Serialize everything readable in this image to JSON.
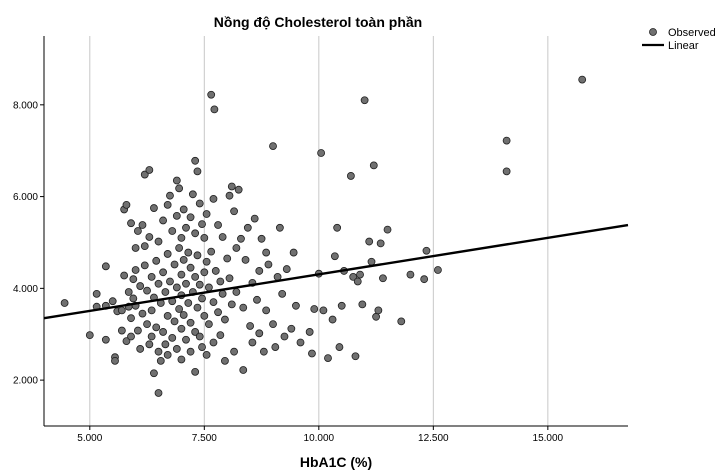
{
  "chart_data": {
    "type": "scatter",
    "title": "Nồng độ Cholesterol toàn phần",
    "xlabel": "HbA1C (%)",
    "ylabel": "",
    "xlim": [
      4.0,
      16.75
    ],
    "ylim": [
      1.0,
      9.5
    ],
    "x_ticks": [
      5.0,
      7.5,
      10.0,
      12.5,
      15.0
    ],
    "x_tick_labels": [
      "5.000",
      "7.500",
      "10.000",
      "12.500",
      "15.000"
    ],
    "y_ticks": [
      2.0,
      4.0,
      6.0,
      8.0
    ],
    "y_tick_labels": [
      "2.000",
      "4.000",
      "6.000",
      "8.000"
    ],
    "grid": "vertical",
    "legend_position": "top-right",
    "series": [
      {
        "name": "Observed",
        "kind": "scatter",
        "points": [
          [
            4.45,
            3.68
          ],
          [
            5.0,
            2.98
          ],
          [
            5.15,
            3.6
          ],
          [
            5.15,
            3.88
          ],
          [
            5.35,
            4.48
          ],
          [
            5.35,
            3.62
          ],
          [
            5.35,
            2.88
          ],
          [
            5.5,
            3.72
          ],
          [
            5.55,
            2.5
          ],
          [
            5.55,
            2.42
          ],
          [
            5.6,
            3.5
          ],
          [
            5.7,
            3.52
          ],
          [
            5.7,
            3.08
          ],
          [
            5.75,
            4.28
          ],
          [
            5.75,
            5.72
          ],
          [
            5.8,
            5.82
          ],
          [
            5.8,
            2.85
          ],
          [
            5.85,
            3.92
          ],
          [
            5.85,
            3.6
          ],
          [
            5.9,
            5.42
          ],
          [
            5.9,
            3.35
          ],
          [
            5.9,
            2.95
          ],
          [
            5.95,
            4.2
          ],
          [
            5.95,
            3.78
          ],
          [
            6.0,
            4.88
          ],
          [
            6.0,
            4.4
          ],
          [
            6.0,
            3.62
          ],
          [
            6.05,
            5.25
          ],
          [
            6.05,
            3.08
          ],
          [
            6.1,
            4.05
          ],
          [
            6.1,
            2.68
          ],
          [
            6.15,
            5.38
          ],
          [
            6.15,
            3.45
          ],
          [
            6.2,
            6.48
          ],
          [
            6.2,
            4.92
          ],
          [
            6.2,
            4.5
          ],
          [
            6.25,
            3.95
          ],
          [
            6.25,
            3.22
          ],
          [
            6.3,
            6.58
          ],
          [
            6.3,
            5.12
          ],
          [
            6.3,
            2.78
          ],
          [
            6.35,
            4.25
          ],
          [
            6.35,
            3.52
          ],
          [
            6.35,
            2.95
          ],
          [
            6.4,
            5.75
          ],
          [
            6.4,
            3.8
          ],
          [
            6.4,
            2.15
          ],
          [
            6.45,
            4.6
          ],
          [
            6.45,
            3.15
          ],
          [
            6.5,
            1.72
          ],
          [
            6.5,
            5.02
          ],
          [
            6.5,
            4.1
          ],
          [
            6.5,
            2.62
          ],
          [
            6.55,
            3.68
          ],
          [
            6.55,
            2.42
          ],
          [
            6.6,
            5.48
          ],
          [
            6.6,
            4.35
          ],
          [
            6.6,
            3.05
          ],
          [
            6.65,
            3.92
          ],
          [
            6.65,
            2.78
          ],
          [
            6.7,
            5.82
          ],
          [
            6.7,
            4.75
          ],
          [
            6.7,
            3.4
          ],
          [
            6.7,
            2.55
          ],
          [
            6.75,
            6.02
          ],
          [
            6.75,
            4.15
          ],
          [
            6.8,
            5.25
          ],
          [
            6.8,
            3.72
          ],
          [
            6.8,
            2.92
          ],
          [
            6.85,
            4.52
          ],
          [
            6.85,
            3.28
          ],
          [
            6.9,
            6.35
          ],
          [
            6.9,
            5.58
          ],
          [
            6.9,
            4.02
          ],
          [
            6.9,
            2.68
          ],
          [
            6.95,
            6.18
          ],
          [
            6.95,
            4.88
          ],
          [
            6.95,
            3.55
          ],
          [
            7.0,
            5.1
          ],
          [
            7.0,
            4.3
          ],
          [
            7.0,
            3.85
          ],
          [
            7.0,
            3.12
          ],
          [
            7.0,
            2.45
          ],
          [
            7.05,
            5.72
          ],
          [
            7.05,
            4.62
          ],
          [
            7.05,
            3.42
          ],
          [
            7.1,
            5.32
          ],
          [
            7.1,
            4.1
          ],
          [
            7.1,
            2.88
          ],
          [
            7.15,
            4.78
          ],
          [
            7.15,
            3.68
          ],
          [
            7.2,
            5.55
          ],
          [
            7.2,
            4.45
          ],
          [
            7.2,
            3.25
          ],
          [
            7.2,
            2.62
          ],
          [
            7.25,
            6.05
          ],
          [
            7.25,
            3.92
          ],
          [
            7.3,
            6.78
          ],
          [
            7.3,
            5.2
          ],
          [
            7.3,
            4.25
          ],
          [
            7.3,
            3.05
          ],
          [
            7.3,
            2.18
          ],
          [
            7.35,
            6.55
          ],
          [
            7.35,
            4.72
          ],
          [
            7.35,
            3.58
          ],
          [
            7.4,
            5.85
          ],
          [
            7.4,
            4.08
          ],
          [
            7.4,
            2.95
          ],
          [
            7.45,
            5.4
          ],
          [
            7.45,
            3.78
          ],
          [
            7.45,
            2.72
          ],
          [
            7.5,
            5.1
          ],
          [
            7.5,
            4.35
          ],
          [
            7.5,
            3.4
          ],
          [
            7.55,
            5.62
          ],
          [
            7.55,
            4.58
          ],
          [
            7.55,
            2.55
          ],
          [
            7.6,
            4.02
          ],
          [
            7.6,
            3.22
          ],
          [
            7.65,
            8.22
          ],
          [
            7.65,
            4.8
          ],
          [
            7.7,
            5.95
          ],
          [
            7.7,
            3.7
          ],
          [
            7.7,
            2.82
          ],
          [
            7.72,
            7.9
          ],
          [
            7.75,
            4.38
          ],
          [
            7.8,
            5.38
          ],
          [
            7.8,
            3.48
          ],
          [
            7.85,
            4.15
          ],
          [
            7.85,
            2.98
          ],
          [
            7.9,
            5.12
          ],
          [
            7.9,
            3.88
          ],
          [
            7.95,
            3.32
          ],
          [
            7.95,
            2.42
          ],
          [
            8.0,
            4.65
          ],
          [
            8.05,
            6.02
          ],
          [
            8.05,
            4.22
          ],
          [
            8.1,
            6.22
          ],
          [
            8.1,
            3.65
          ],
          [
            8.15,
            5.68
          ],
          [
            8.15,
            2.62
          ],
          [
            8.2,
            4.88
          ],
          [
            8.2,
            3.92
          ],
          [
            8.25,
            6.15
          ],
          [
            8.3,
            5.08
          ],
          [
            8.35,
            3.58
          ],
          [
            8.35,
            2.22
          ],
          [
            8.4,
            4.62
          ],
          [
            8.45,
            5.32
          ],
          [
            8.5,
            3.18
          ],
          [
            8.55,
            4.12
          ],
          [
            8.55,
            2.82
          ],
          [
            8.6,
            5.52
          ],
          [
            8.65,
            3.75
          ],
          [
            8.7,
            4.38
          ],
          [
            8.7,
            3.02
          ],
          [
            8.75,
            5.08
          ],
          [
            8.8,
            2.62
          ],
          [
            8.85,
            4.78
          ],
          [
            8.85,
            3.52
          ],
          [
            8.9,
            4.52
          ],
          [
            9.0,
            7.1
          ],
          [
            9.0,
            3.22
          ],
          [
            9.05,
            2.72
          ],
          [
            9.1,
            4.25
          ],
          [
            9.15,
            5.32
          ],
          [
            9.2,
            3.88
          ],
          [
            9.25,
            2.95
          ],
          [
            9.3,
            4.42
          ],
          [
            9.4,
            3.12
          ],
          [
            9.45,
            4.78
          ],
          [
            9.5,
            3.62
          ],
          [
            9.6,
            2.82
          ],
          [
            9.8,
            3.05
          ],
          [
            9.85,
            2.58
          ],
          [
            9.9,
            3.55
          ],
          [
            10.0,
            4.32
          ],
          [
            10.05,
            6.95
          ],
          [
            10.1,
            3.52
          ],
          [
            10.2,
            2.48
          ],
          [
            10.3,
            3.32
          ],
          [
            10.35,
            4.7
          ],
          [
            10.4,
            5.32
          ],
          [
            10.45,
            2.72
          ],
          [
            10.5,
            3.62
          ],
          [
            10.55,
            4.38
          ],
          [
            10.7,
            6.45
          ],
          [
            10.75,
            4.25
          ],
          [
            10.8,
            2.52
          ],
          [
            10.85,
            4.15
          ],
          [
            10.9,
            4.3
          ],
          [
            10.95,
            3.65
          ],
          [
            11.0,
            8.1
          ],
          [
            11.1,
            5.02
          ],
          [
            11.15,
            4.58
          ],
          [
            11.2,
            6.68
          ],
          [
            11.25,
            3.38
          ],
          [
            11.3,
            3.52
          ],
          [
            11.35,
            4.98
          ],
          [
            11.4,
            4.22
          ],
          [
            11.5,
            5.28
          ],
          [
            11.8,
            3.28
          ],
          [
            12.0,
            4.3
          ],
          [
            12.3,
            4.2
          ],
          [
            12.35,
            4.82
          ],
          [
            12.6,
            4.4
          ],
          [
            14.1,
            7.22
          ],
          [
            14.1,
            6.55
          ],
          [
            15.75,
            8.55
          ]
        ]
      },
      {
        "name": "Linear",
        "kind": "line",
        "points": [
          [
            4.0,
            3.35
          ],
          [
            16.75,
            5.38
          ]
        ]
      }
    ]
  },
  "style": {
    "marker_fill": "#707070",
    "marker_stroke": "#202020",
    "line_color": "#000000",
    "axis_color": "#000000",
    "grid_color": "#c8c8c8"
  }
}
